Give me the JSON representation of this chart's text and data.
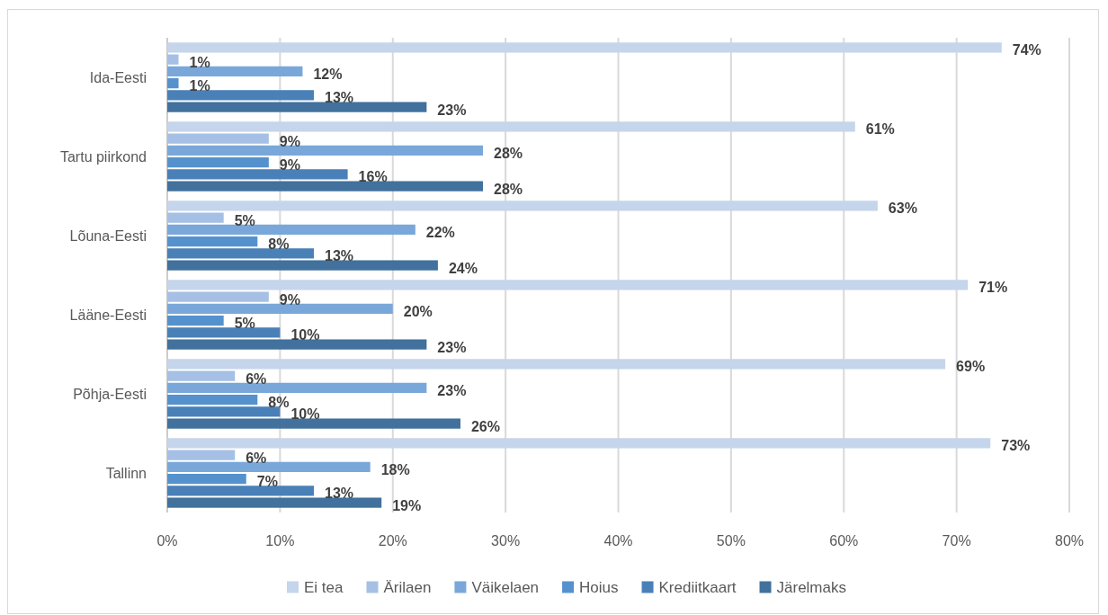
{
  "chart_data": {
    "type": "bar",
    "orientation": "horizontal",
    "categories": [
      "Ida-Eesti",
      "Tartu piirkond",
      "Lõuna-Eesti",
      "Lääne-Eesti",
      "Põhja-Eesti",
      "Tallinn"
    ],
    "series": [
      {
        "name": "Ei tea",
        "color": "#c5d5eb",
        "values": [
          74,
          61,
          63,
          71,
          69,
          73
        ],
        "value_labels": [
          "74%",
          "61%",
          "63%",
          "71%",
          "69%",
          "73%"
        ]
      },
      {
        "name": "Ärilaen",
        "color": "#a5c0e4",
        "values": [
          1,
          9,
          5,
          9,
          6,
          6
        ],
        "value_labels": [
          "1%",
          "9%",
          "5%",
          "9%",
          "6%",
          "6%"
        ]
      },
      {
        "name": "Väikelaen",
        "color": "#7aa7d9",
        "values": [
          12,
          28,
          22,
          20,
          23,
          18
        ],
        "value_labels": [
          "12%",
          "28%",
          "22%",
          "20%",
          "23%",
          "18%"
        ]
      },
      {
        "name": "Hoius",
        "color": "#5592cd",
        "values": [
          1,
          9,
          8,
          5,
          8,
          7
        ],
        "value_labels": [
          "1%",
          "9%",
          "8%",
          "5%",
          "8%",
          "7%"
        ]
      },
      {
        "name": "Krediitkaart",
        "color": "#4a80b8",
        "values": [
          13,
          16,
          13,
          10,
          10,
          13
        ],
        "value_labels": [
          "13%",
          "16%",
          "13%",
          "10%",
          "10%",
          "13%"
        ]
      },
      {
        "name": "Järelmaks",
        "color": "#41719c",
        "values": [
          23,
          28,
          24,
          23,
          26,
          19
        ],
        "value_labels": [
          "23%",
          "28%",
          "24%",
          "23%",
          "26%",
          "19%"
        ]
      }
    ],
    "xlim": [
      0,
      80
    ],
    "xticks": [
      {
        "value": 0,
        "label": "0%"
      },
      {
        "value": 10,
        "label": "10%"
      },
      {
        "value": 20,
        "label": "20%"
      },
      {
        "value": 30,
        "label": "30%"
      },
      {
        "value": 40,
        "label": "40%"
      },
      {
        "value": 50,
        "label": "50%"
      },
      {
        "value": 60,
        "label": "60%"
      },
      {
        "value": 70,
        "label": "70%"
      },
      {
        "value": 80,
        "label": "80%"
      }
    ],
    "grid": "x",
    "legend": "bottom"
  }
}
